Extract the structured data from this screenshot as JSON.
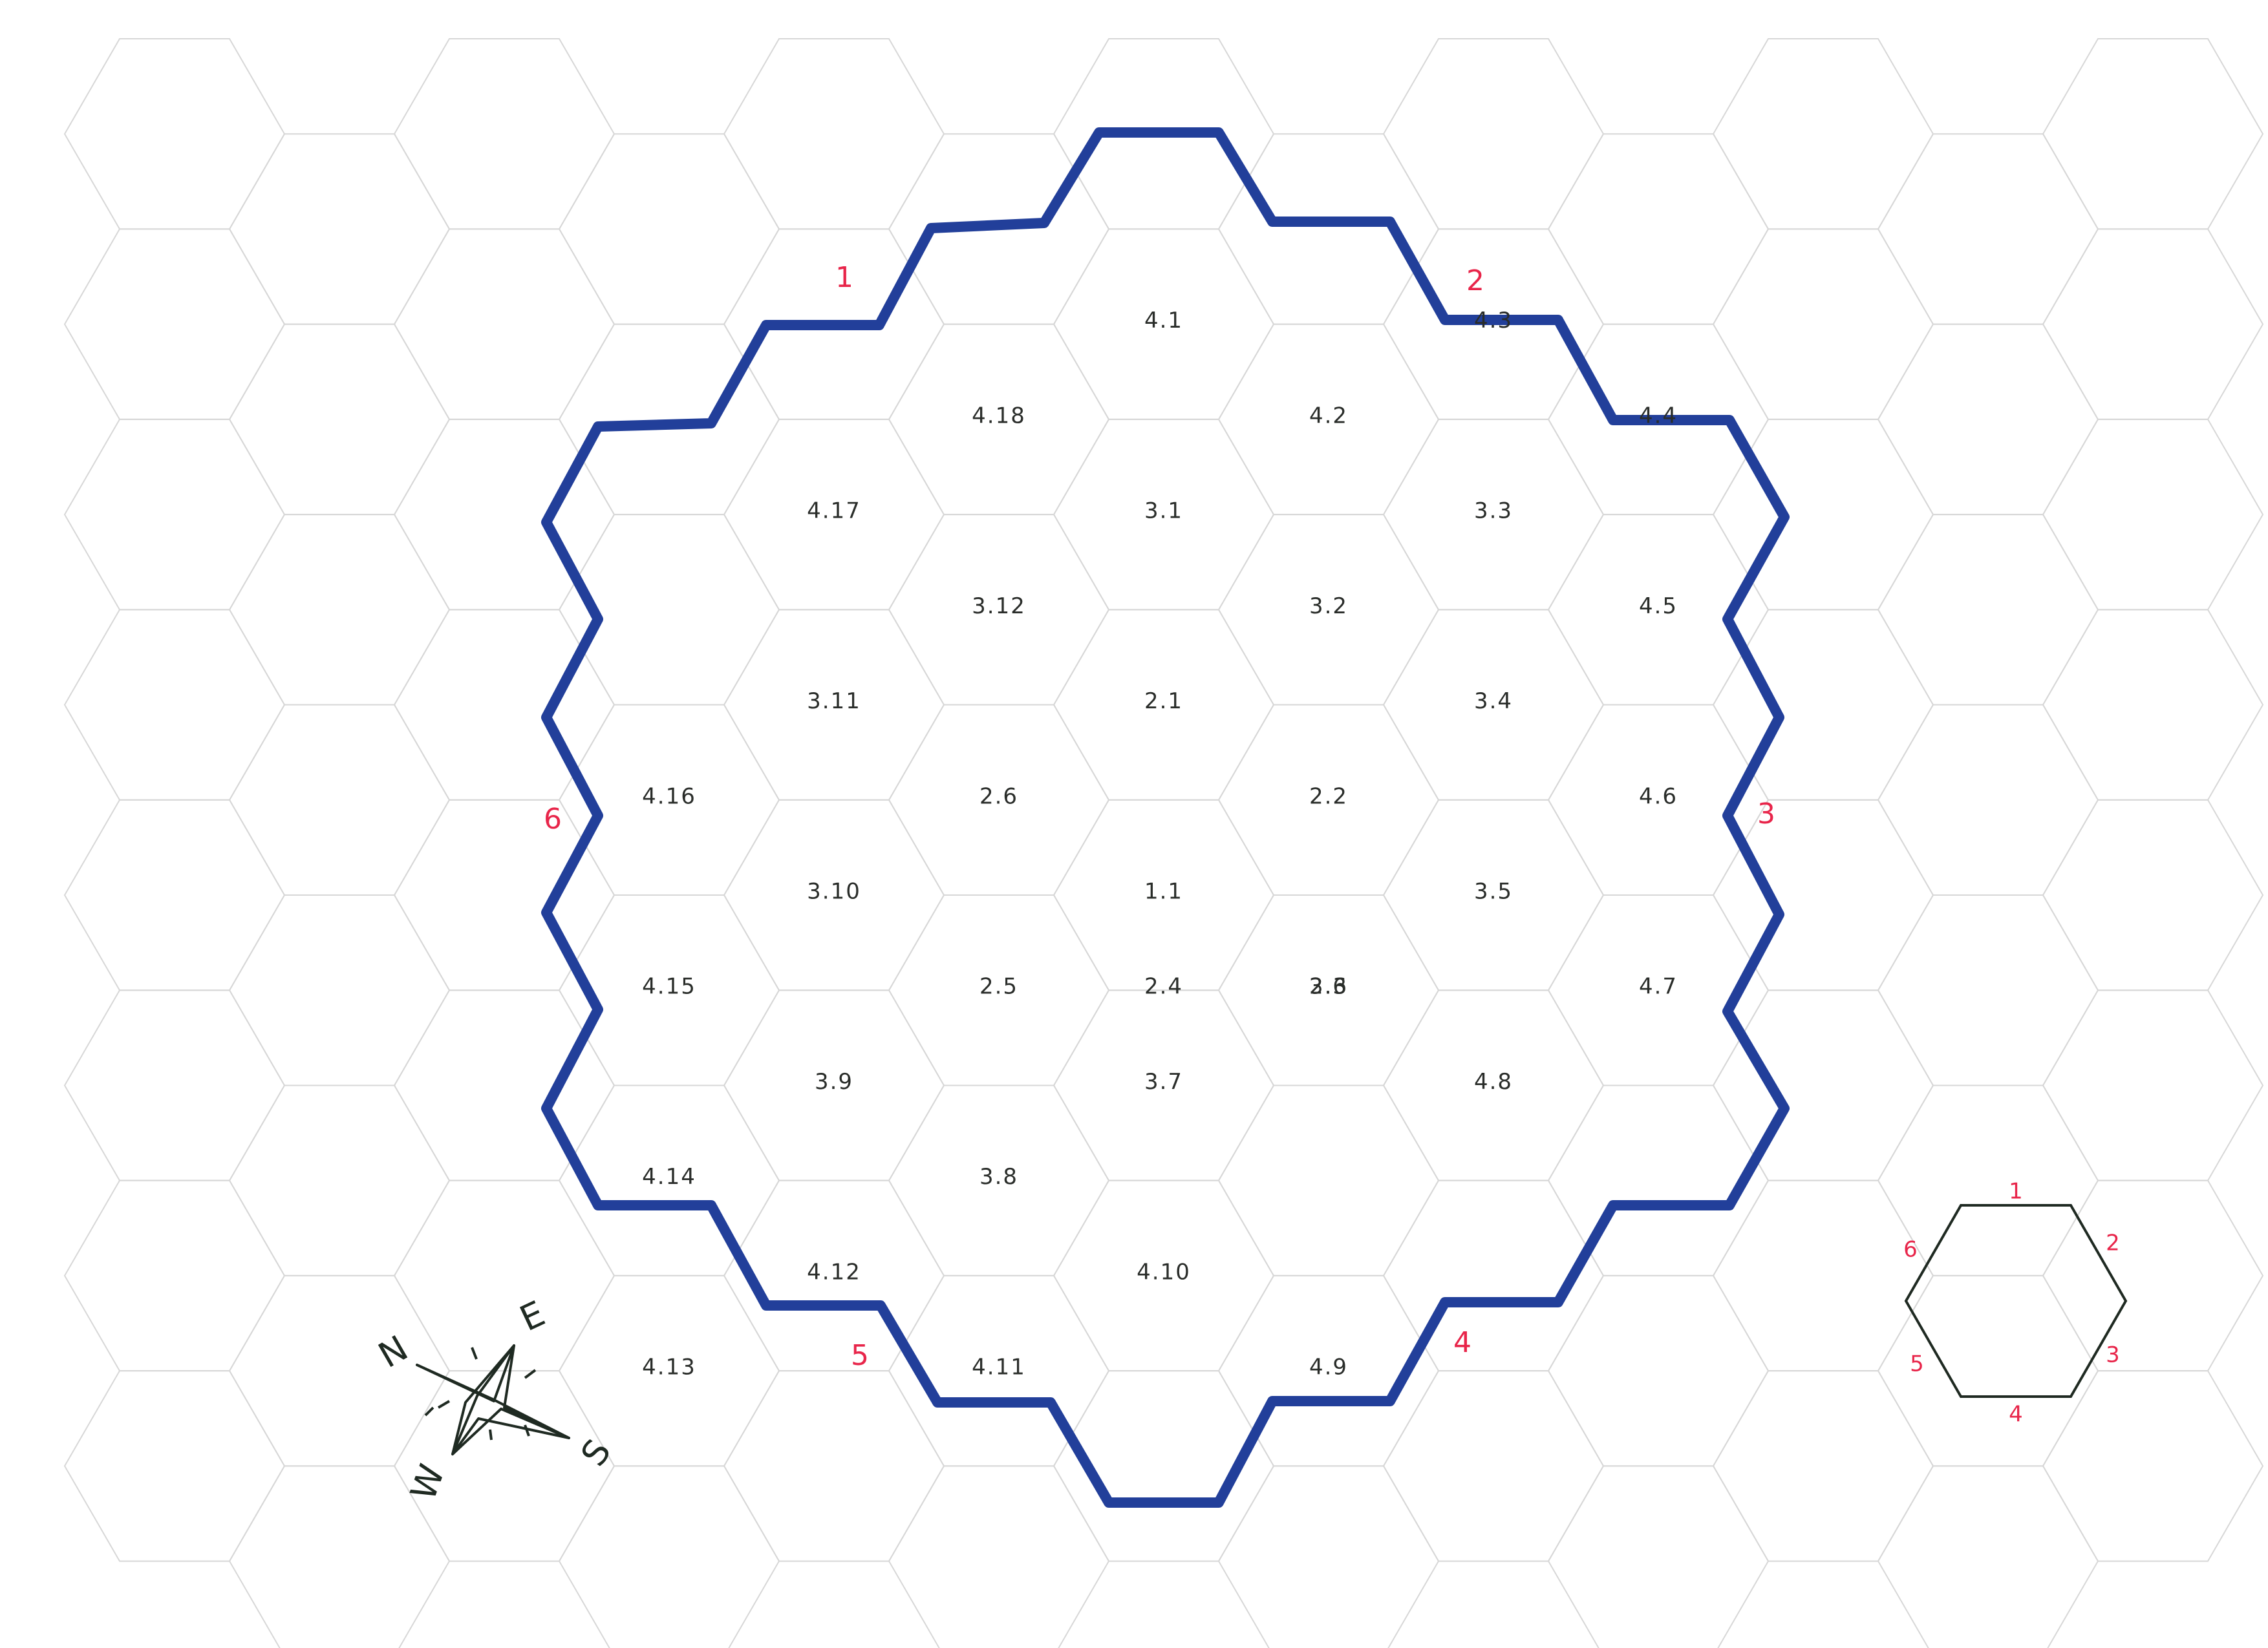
{
  "colors": {
    "boundary": "#223f9a",
    "edge_number": "#e8254a",
    "grid": "#d7d7d7",
    "ink": "#2a2d2a"
  },
  "hexes": [
    {
      "label": "4.1",
      "q": 0,
      "r": -4
    },
    {
      "label": "4.2",
      "q": 1,
      "r": -4
    },
    {
      "label": "4.3",
      "q": 2,
      "r": -4
    },
    {
      "label": "4.4",
      "q": 3,
      "r": -4
    },
    {
      "label": "4.5",
      "q": 3,
      "r": -3
    },
    {
      "label": "4.6",
      "q": 3,
      "r": -2
    },
    {
      "label": "4.7",
      "q": 3,
      "r": -1
    },
    {
      "label": "4.8",
      "q": 2,
      "r": 0
    },
    {
      "label": "4.9",
      "q": 1,
      "r": 1
    },
    {
      "label": "4.10",
      "q": 0,
      "r": 1
    },
    {
      "label": "4.11",
      "q": -1,
      "r": 1
    },
    {
      "label": "4.12",
      "q": -2,
      "r": 1
    },
    {
      "label": "4.13",
      "q": -3,
      "r": 1
    },
    {
      "label": "4.14",
      "q": -3,
      "r": 0
    },
    {
      "label": "4.15",
      "q": -3,
      "r": -1
    },
    {
      "label": "4.16",
      "q": -3,
      "r": -2
    },
    {
      "label": "4.17",
      "q": -2,
      "r": -3
    },
    {
      "label": "4.18",
      "q": -1,
      "r": -4
    },
    {
      "label": "3.1",
      "q": 0,
      "r": -3
    },
    {
      "label": "3.2",
      "q": 1,
      "r": -3
    },
    {
      "label": "3.3",
      "q": 2,
      "r": -3
    },
    {
      "label": "3.4",
      "q": 2,
      "r": -2
    },
    {
      "label": "3.5",
      "q": 2,
      "r": -1
    },
    {
      "label": "3.6",
      "q": 1,
      "r": -1
    },
    {
      "label": "3.7",
      "q": 0,
      "r": 0
    },
    {
      "label": "3.8",
      "q": -1,
      "r": 0
    },
    {
      "label": "3.9",
      "q": -2,
      "r": 0
    },
    {
      "label": "3.10",
      "q": -2,
      "r": -1
    },
    {
      "label": "3.11",
      "q": -2,
      "r": -2
    },
    {
      "label": "3.12",
      "q": -1,
      "r": -3
    },
    {
      "label": "2.1",
      "q": 0,
      "r": -2
    },
    {
      "label": "2.2",
      "q": 1,
      "r": -2
    },
    {
      "label": "2.3",
      "q": 1,
      "r": -1
    },
    {
      "label": "2.4",
      "q": 0,
      "r": -0.5
    },
    {
      "label": "2.5",
      "q": -1,
      "r": -1
    },
    {
      "label": "2.6",
      "q": -1,
      "r": -2
    },
    {
      "label": "1.1",
      "q": 0,
      "r": -1
    }
  ],
  "edge_numbers": [
    "1",
    "2",
    "3",
    "4",
    "5",
    "6"
  ],
  "compass": {
    "north": "N",
    "east": "E",
    "south": "S",
    "west": "W"
  },
  "key": {
    "sides": [
      "1",
      "2",
      "3",
      "4",
      "5",
      "6"
    ]
  }
}
